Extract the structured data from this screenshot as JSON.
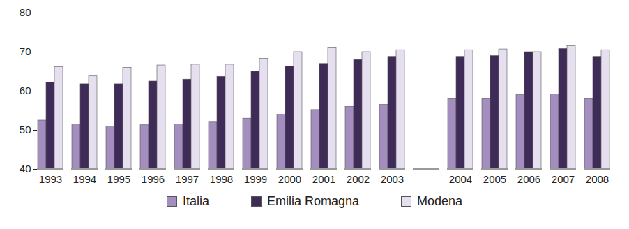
{
  "chart_data": {
    "type": "bar",
    "categories": [
      "1993",
      "1994",
      "1995",
      "1996",
      "1997",
      "1998",
      "1999",
      "2000",
      "2001",
      "2002",
      "2003",
      null,
      "2004",
      "2005",
      "2006",
      "2007",
      "2008"
    ],
    "series": [
      {
        "name": "Italia",
        "color": "#a48dbf",
        "values": [
          52.5,
          51.5,
          51,
          51.3,
          51.5,
          52,
          53,
          54,
          55.2,
          56,
          56.5,
          null,
          58,
          58,
          59,
          59.2,
          58
        ]
      },
      {
        "name": "Emilia Romagna",
        "color": "#3f2b58",
        "values": [
          62.2,
          61.8,
          61.8,
          62.5,
          63,
          63.7,
          65,
          66.3,
          67,
          68,
          68.8,
          null,
          68.8,
          69,
          70,
          70.8,
          68.8
        ]
      },
      {
        "name": "Modena",
        "color": "#e6dff0",
        "values": [
          66.2,
          63.8,
          66,
          66.6,
          66.8,
          66.8,
          68.3,
          70,
          71,
          70,
          70.5,
          null,
          70.5,
          70.7,
          70,
          71.5,
          70.5
        ]
      }
    ],
    "ylim": [
      40,
      80
    ],
    "yticks": [
      40,
      50,
      60,
      70,
      80
    ],
    "grid": false,
    "legend": "bottom"
  }
}
